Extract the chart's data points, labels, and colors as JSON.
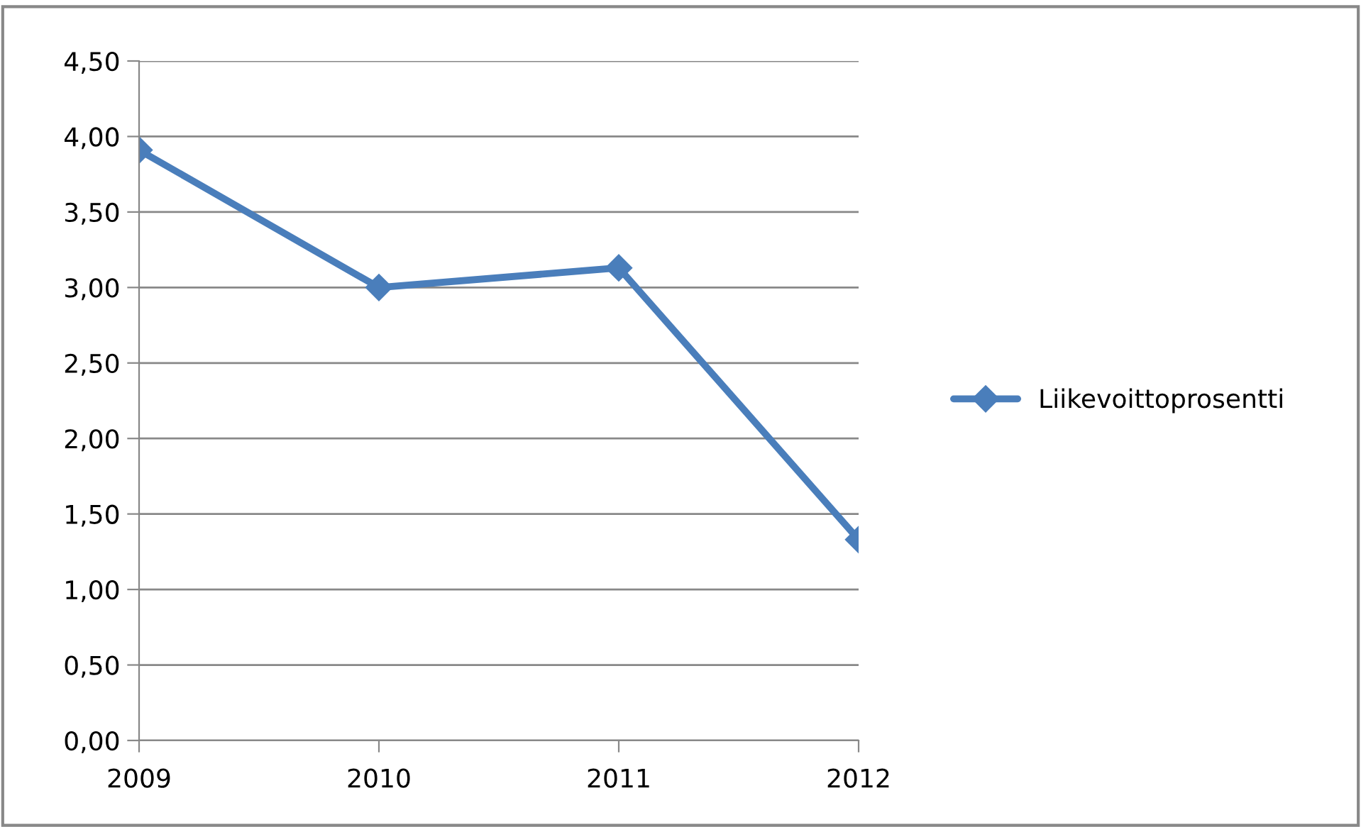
{
  "chart_data": {
    "type": "line",
    "categories": [
      "2009",
      "2010",
      "2011",
      "2012"
    ],
    "series": [
      {
        "name": "Liikevoittoprosentti",
        "color": "#4a7ebb",
        "values": [
          3.91,
          3.0,
          3.13,
          1.33
        ]
      }
    ],
    "ylim": [
      0,
      4.5
    ],
    "yticks": [
      {
        "value": 0,
        "label": "0,00"
      },
      {
        "value": 0.5,
        "label": "0,50"
      },
      {
        "value": 1,
        "label": "1,00"
      },
      {
        "value": 1.5,
        "label": "1,50"
      },
      {
        "value": 2,
        "label": "2,00"
      },
      {
        "value": 2.5,
        "label": "2,50"
      },
      {
        "value": 3,
        "label": "3,00"
      },
      {
        "value": 3.5,
        "label": "3,50"
      },
      {
        "value": 4,
        "label": "4,00"
      },
      {
        "value": 4.5,
        "label": "4,50"
      }
    ],
    "grid": "y",
    "legend": "right",
    "marker": "diamond",
    "line_style": "solid"
  }
}
